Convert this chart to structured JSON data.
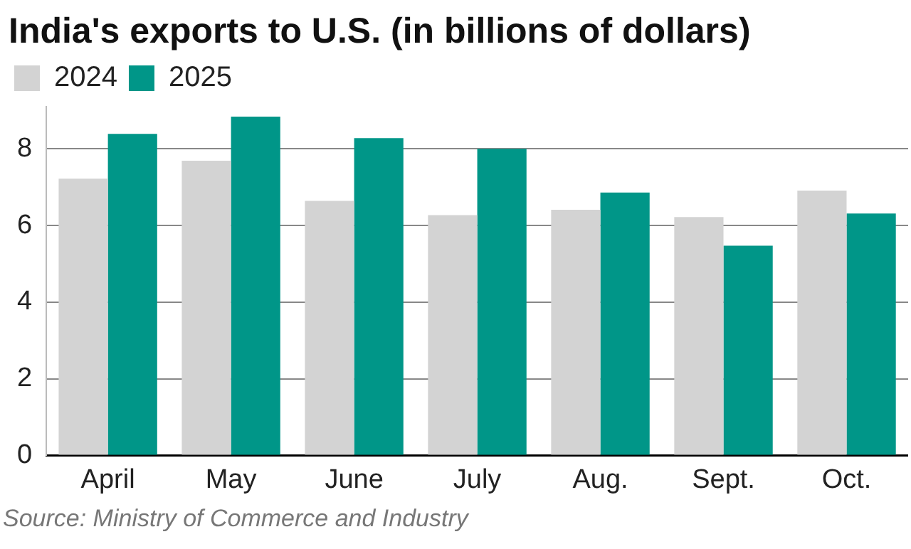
{
  "chart_data": {
    "type": "bar",
    "title": "India's exports to U.S. (in billions of dollars)",
    "categories": [
      "April",
      "May",
      "June",
      "July",
      "Aug.",
      "Sept.",
      "Oct."
    ],
    "series": [
      {
        "name": "2024",
        "color": "#d3d3d3",
        "values": [
          7.22,
          7.69,
          6.64,
          6.27,
          6.41,
          6.22,
          6.91
        ]
      },
      {
        "name": "2025",
        "color": "#009688",
        "values": [
          8.39,
          8.84,
          8.28,
          8.0,
          6.86,
          5.47,
          6.31
        ]
      }
    ],
    "ylim": [
      0,
      9.1
    ],
    "yticks": [
      0,
      2,
      4,
      6,
      8
    ],
    "grid": "y",
    "legend": "top left",
    "annotations": [
      "Source: Ministry of Commerce and Industry"
    ]
  }
}
